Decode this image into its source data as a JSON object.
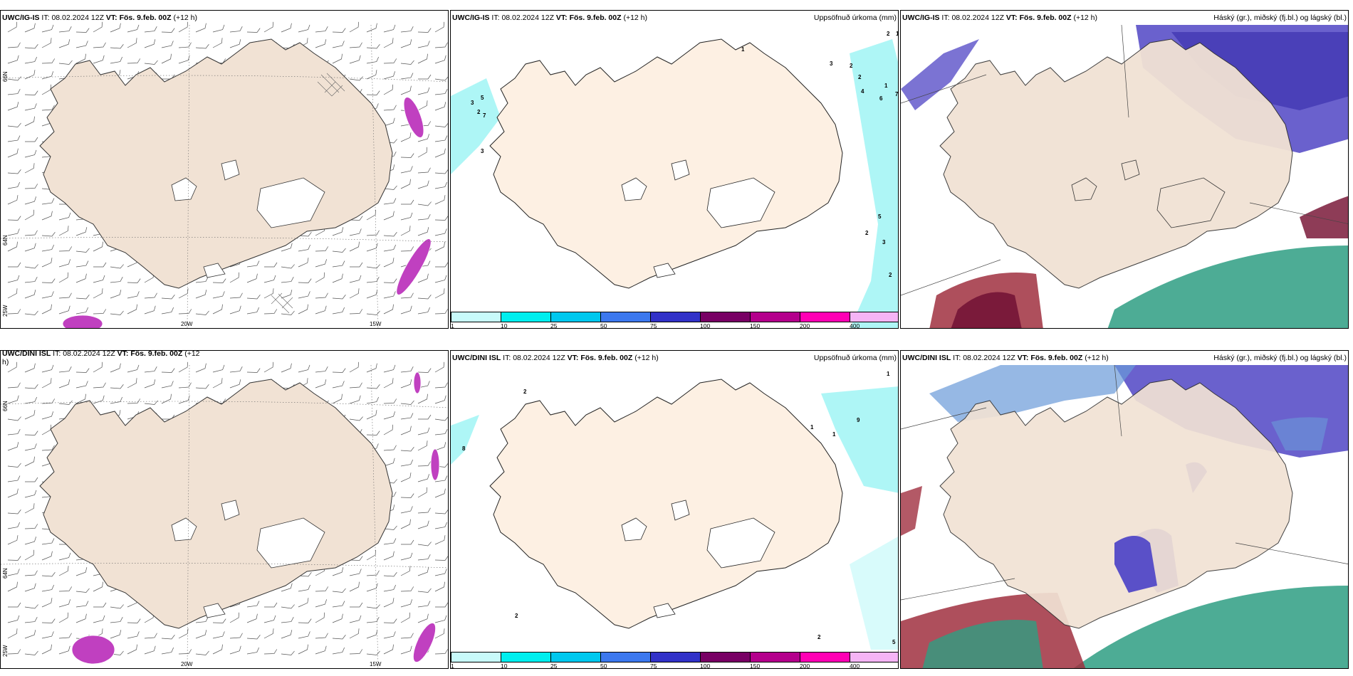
{
  "panels": [
    {
      "model": "UWC/IG-IS",
      "it_label": "IT:",
      "it": "08.02.2024 12Z",
      "vt_label": "VT:",
      "vt": "Fös. 9.feb. 00Z",
      "lead": "(+12 h)",
      "right": ""
    },
    {
      "model": "UWC/IG-IS",
      "it_label": "IT:",
      "it": "08.02.2024 12Z",
      "vt_label": "VT:",
      "vt": "Fös. 9.feb. 00Z",
      "lead": "(+12 h)",
      "right": "Uppsöfnuð úrkoma (mm)"
    },
    {
      "model": "UWC/IG-IS",
      "it_label": "IT:",
      "it": "08.02.2024 12Z",
      "vt_label": "VT:",
      "vt": "Fös. 9.feb. 00Z",
      "lead": "(+12 h)",
      "right": "Háský (gr.), miðský (fj.bl.) og lágský (bl.)"
    },
    {
      "model": "UWC/DINI ISL",
      "it_label": "IT:",
      "it": "08.02.2024 12Z",
      "vt_label": "VT:",
      "vt": "Fös. 9.feb. 00Z",
      "lead": "(+12",
      "lead2": "h)",
      "right": ""
    },
    {
      "model": "UWC/DINI ISL",
      "it_label": "IT:",
      "it": "08.02.2024 12Z",
      "vt_label": "VT:",
      "vt": "Fös. 9.feb. 00Z",
      "lead": "(+12 h)",
      "right": "Uppsöfnuð úrkoma (mm)"
    },
    {
      "model": "UWC/DINI ISL",
      "it_label": "IT:",
      "it": "08.02.2024 12Z",
      "vt_label": "VT:",
      "vt": "Fös. 9.feb. 00Z",
      "lead": "(+12 h)",
      "right": "Háský (gr.), miðský (fj.bl.) og lágský (bl.)"
    }
  ],
  "axis_labels": {
    "lon_20w": "20W",
    "lon_15w": "15W",
    "lat_66n": "66N",
    "lat_64n": "64N",
    "lon_25w": "25W"
  },
  "colorbar": {
    "ticks": [
      "1",
      "10",
      "25",
      "50",
      "75",
      "100",
      "150",
      "200",
      "400"
    ],
    "colors": [
      "#c8fafa",
      "#00eeee",
      "#00c8ee",
      "#3c78ee",
      "#3232c8",
      "#780064",
      "#b4008c",
      "#ff00b4",
      "#f5b4f5"
    ]
  },
  "precip_top": [
    "1",
    "2",
    "1",
    "3",
    "2",
    "2",
    "4",
    "1",
    "6",
    "7",
    "5",
    "3",
    "7",
    "2",
    "3",
    "5",
    "2",
    "3",
    "2"
  ],
  "precip_bottom": [
    "1",
    "2",
    "1",
    "9",
    "1",
    "8",
    "2",
    "2",
    "5"
  ],
  "colors": {
    "land": "#f5e6d6",
    "land_precip": "#fdf0e3",
    "ocean": "#ffffff",
    "highcloud": "#2e9e82",
    "midcloud": "#5a50c8",
    "lowcloud": "#7a1a3a"
  }
}
